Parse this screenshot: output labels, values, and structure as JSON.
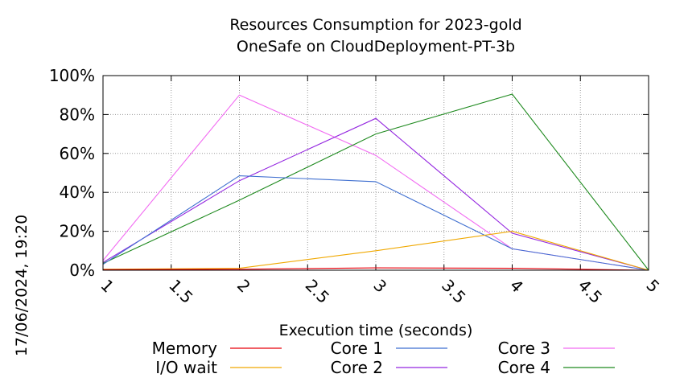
{
  "chart_data": {
    "type": "line",
    "title_line1": "Resources Consumption for 2023-gold",
    "title_line2": "OneSafe on CloudDeployment-PT-3b",
    "xlabel": "Execution time (seconds)",
    "ylabel": "",
    "timestamp": "17/06/2024, 19:20",
    "x": [
      1,
      2,
      3,
      4,
      5
    ],
    "xlim": [
      1,
      5
    ],
    "ylim": [
      0,
      100
    ],
    "x_ticks": [
      "1",
      "1.5",
      "2",
      "2.5",
      "3",
      "3.5",
      "4",
      "4.5",
      "5"
    ],
    "y_ticks": [
      "0%",
      "20%",
      "40%",
      "60%",
      "80%",
      "100%"
    ],
    "grid": true,
    "legend_position": "bottom",
    "series": [
      {
        "name": "Memory",
        "color": "#e8000b",
        "values": [
          0.3,
          0.5,
          1.2,
          1.0,
          0
        ]
      },
      {
        "name": "I/O wait",
        "color": "#f0a800",
        "values": [
          0.5,
          1,
          10,
          20,
          0
        ]
      },
      {
        "name": "Core 1",
        "color": "#3f6fd0",
        "values": [
          3,
          48.5,
          45.5,
          11,
          0
        ]
      },
      {
        "name": "Core 2",
        "color": "#9426e0",
        "values": [
          4,
          46,
          78,
          19,
          0
        ]
      },
      {
        "name": "Core 3",
        "color": "#f26cf2",
        "values": [
          5,
          90,
          59,
          11,
          0
        ]
      },
      {
        "name": "Core 4",
        "color": "#1f8a1f",
        "values": [
          3.5,
          36,
          70,
          90.5,
          0
        ]
      }
    ]
  }
}
